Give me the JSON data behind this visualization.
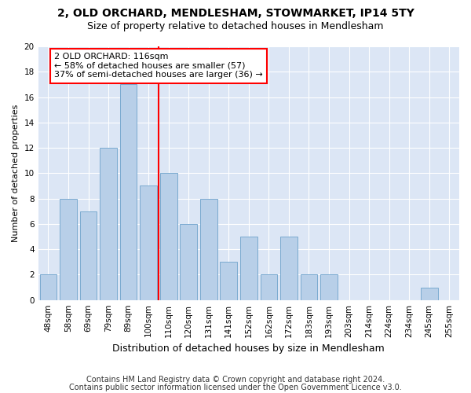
{
  "title": "2, OLD ORCHARD, MENDLESHAM, STOWMARKET, IP14 5TY",
  "subtitle": "Size of property relative to detached houses in Mendlesham",
  "xlabel": "Distribution of detached houses by size in Mendlesham",
  "ylabel": "Number of detached properties",
  "categories": [
    "48sqm",
    "58sqm",
    "69sqm",
    "79sqm",
    "89sqm",
    "100sqm",
    "110sqm",
    "120sqm",
    "131sqm",
    "141sqm",
    "152sqm",
    "162sqm",
    "172sqm",
    "183sqm",
    "193sqm",
    "203sqm",
    "214sqm",
    "224sqm",
    "234sqm",
    "245sqm",
    "255sqm"
  ],
  "values": [
    2,
    8,
    7,
    12,
    17,
    9,
    10,
    6,
    8,
    3,
    5,
    2,
    5,
    2,
    2,
    0,
    0,
    0,
    0,
    1,
    0
  ],
  "bar_color": "#b8cfe8",
  "bar_edge_color": "#7aaad0",
  "reference_line_x": 5.5,
  "reference_label": "2 OLD ORCHARD: 116sqm",
  "annotation_line1": "← 58% of detached houses are smaller (57)",
  "annotation_line2": "37% of semi-detached houses are larger (36) →",
  "ylim": [
    0,
    20
  ],
  "yticks": [
    0,
    2,
    4,
    6,
    8,
    10,
    12,
    14,
    16,
    18,
    20
  ],
  "footnote1": "Contains HM Land Registry data © Crown copyright and database right 2024.",
  "footnote2": "Contains public sector information licensed under the Open Government Licence v3.0.",
  "plot_bg_color": "#dce6f5",
  "fig_bg_color": "#ffffff",
  "grid_color": "#ffffff",
  "title_fontsize": 10,
  "subtitle_fontsize": 9,
  "ylabel_fontsize": 8,
  "xlabel_fontsize": 9,
  "tick_fontsize": 7.5,
  "footnote_fontsize": 7,
  "annotation_fontsize": 8
}
